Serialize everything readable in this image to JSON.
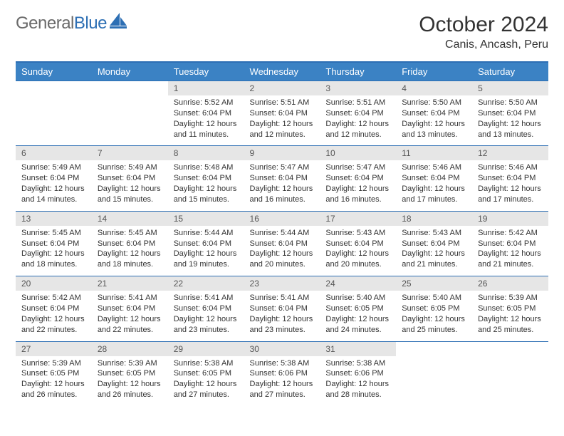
{
  "logo": {
    "text1": "General",
    "text2": "Blue"
  },
  "title": "October 2024",
  "location": "Canis, Ancash, Peru",
  "colors": {
    "header_bg": "#3b82c4",
    "header_border": "#2d6fb4",
    "daynum_bg": "#e6e6e6",
    "text": "#333333",
    "logo_gray": "#6a6a6a",
    "logo_blue": "#2d6fb4"
  },
  "weekdays": [
    "Sunday",
    "Monday",
    "Tuesday",
    "Wednesday",
    "Thursday",
    "Friday",
    "Saturday"
  ],
  "weeks": [
    [
      null,
      null,
      {
        "d": "1",
        "sr": "5:52 AM",
        "ss": "6:04 PM",
        "dl": "12 hours and 11 minutes."
      },
      {
        "d": "2",
        "sr": "5:51 AM",
        "ss": "6:04 PM",
        "dl": "12 hours and 12 minutes."
      },
      {
        "d": "3",
        "sr": "5:51 AM",
        "ss": "6:04 PM",
        "dl": "12 hours and 12 minutes."
      },
      {
        "d": "4",
        "sr": "5:50 AM",
        "ss": "6:04 PM",
        "dl": "12 hours and 13 minutes."
      },
      {
        "d": "5",
        "sr": "5:50 AM",
        "ss": "6:04 PM",
        "dl": "12 hours and 13 minutes."
      }
    ],
    [
      {
        "d": "6",
        "sr": "5:49 AM",
        "ss": "6:04 PM",
        "dl": "12 hours and 14 minutes."
      },
      {
        "d": "7",
        "sr": "5:49 AM",
        "ss": "6:04 PM",
        "dl": "12 hours and 15 minutes."
      },
      {
        "d": "8",
        "sr": "5:48 AM",
        "ss": "6:04 PM",
        "dl": "12 hours and 15 minutes."
      },
      {
        "d": "9",
        "sr": "5:47 AM",
        "ss": "6:04 PM",
        "dl": "12 hours and 16 minutes."
      },
      {
        "d": "10",
        "sr": "5:47 AM",
        "ss": "6:04 PM",
        "dl": "12 hours and 16 minutes."
      },
      {
        "d": "11",
        "sr": "5:46 AM",
        "ss": "6:04 PM",
        "dl": "12 hours and 17 minutes."
      },
      {
        "d": "12",
        "sr": "5:46 AM",
        "ss": "6:04 PM",
        "dl": "12 hours and 17 minutes."
      }
    ],
    [
      {
        "d": "13",
        "sr": "5:45 AM",
        "ss": "6:04 PM",
        "dl": "12 hours and 18 minutes."
      },
      {
        "d": "14",
        "sr": "5:45 AM",
        "ss": "6:04 PM",
        "dl": "12 hours and 18 minutes."
      },
      {
        "d": "15",
        "sr": "5:44 AM",
        "ss": "6:04 PM",
        "dl": "12 hours and 19 minutes."
      },
      {
        "d": "16",
        "sr": "5:44 AM",
        "ss": "6:04 PM",
        "dl": "12 hours and 20 minutes."
      },
      {
        "d": "17",
        "sr": "5:43 AM",
        "ss": "6:04 PM",
        "dl": "12 hours and 20 minutes."
      },
      {
        "d": "18",
        "sr": "5:43 AM",
        "ss": "6:04 PM",
        "dl": "12 hours and 21 minutes."
      },
      {
        "d": "19",
        "sr": "5:42 AM",
        "ss": "6:04 PM",
        "dl": "12 hours and 21 minutes."
      }
    ],
    [
      {
        "d": "20",
        "sr": "5:42 AM",
        "ss": "6:04 PM",
        "dl": "12 hours and 22 minutes."
      },
      {
        "d": "21",
        "sr": "5:41 AM",
        "ss": "6:04 PM",
        "dl": "12 hours and 22 minutes."
      },
      {
        "d": "22",
        "sr": "5:41 AM",
        "ss": "6:04 PM",
        "dl": "12 hours and 23 minutes."
      },
      {
        "d": "23",
        "sr": "5:41 AM",
        "ss": "6:04 PM",
        "dl": "12 hours and 23 minutes."
      },
      {
        "d": "24",
        "sr": "5:40 AM",
        "ss": "6:05 PM",
        "dl": "12 hours and 24 minutes."
      },
      {
        "d": "25",
        "sr": "5:40 AM",
        "ss": "6:05 PM",
        "dl": "12 hours and 25 minutes."
      },
      {
        "d": "26",
        "sr": "5:39 AM",
        "ss": "6:05 PM",
        "dl": "12 hours and 25 minutes."
      }
    ],
    [
      {
        "d": "27",
        "sr": "5:39 AM",
        "ss": "6:05 PM",
        "dl": "12 hours and 26 minutes."
      },
      {
        "d": "28",
        "sr": "5:39 AM",
        "ss": "6:05 PM",
        "dl": "12 hours and 26 minutes."
      },
      {
        "d": "29",
        "sr": "5:38 AM",
        "ss": "6:05 PM",
        "dl": "12 hours and 27 minutes."
      },
      {
        "d": "30",
        "sr": "5:38 AM",
        "ss": "6:06 PM",
        "dl": "12 hours and 27 minutes."
      },
      {
        "d": "31",
        "sr": "5:38 AM",
        "ss": "6:06 PM",
        "dl": "12 hours and 28 minutes."
      },
      null,
      null
    ]
  ],
  "labels": {
    "sunrise": "Sunrise:",
    "sunset": "Sunset:",
    "daylight": "Daylight:"
  }
}
